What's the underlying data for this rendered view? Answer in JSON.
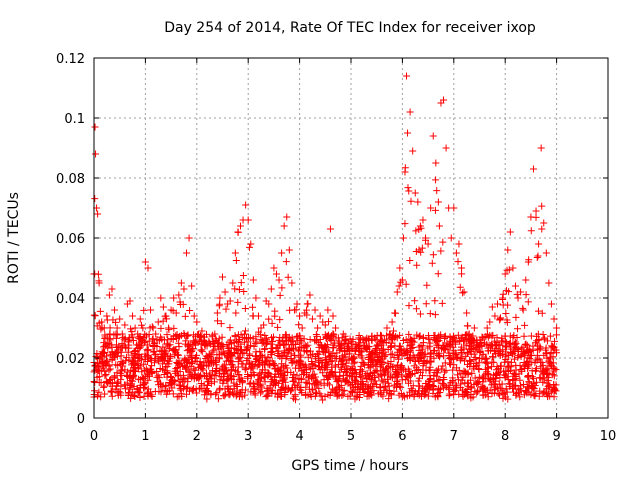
{
  "chart_data": {
    "type": "scatter",
    "title": "Day 254 of 2014, Rate Of TEC Index for receiver ixop",
    "xlabel": "GPS time / hours",
    "ylabel": "ROTI / TECUs",
    "xlim": [
      0,
      10
    ],
    "ylim": [
      0,
      0.12
    ],
    "x_ticks": [
      "0",
      "1",
      "2",
      "3",
      "4",
      "5",
      "6",
      "7",
      "8",
      "9",
      "10"
    ],
    "y_ticks": [
      "0",
      "0.02",
      "0.04",
      "0.06",
      "0.08",
      "0.1",
      "0.12"
    ],
    "grid": true,
    "marker": "+",
    "marker_color": "#ff0000",
    "series": [
      {
        "name": "ROTI",
        "x": [
          0.0,
          0.02,
          0.03,
          0.05,
          0.07,
          0.1,
          0.15,
          0.2,
          0.25,
          0.3,
          0.35,
          0.4,
          0.45,
          0.5,
          0.55,
          0.6,
          0.65,
          0.7,
          0.75,
          0.8,
          0.85,
          0.9,
          0.95,
          1.0,
          1.05,
          1.1,
          1.15,
          1.2,
          1.25,
          1.3,
          1.35,
          1.4,
          1.45,
          1.5,
          1.55,
          1.6,
          1.65,
          1.7,
          1.75,
          1.8,
          1.85,
          1.9,
          1.95,
          2.0,
          2.05,
          2.1,
          2.15,
          2.2,
          2.25,
          2.3,
          2.35,
          2.4,
          2.45,
          2.5,
          2.55,
          2.6,
          2.65,
          2.7,
          2.75,
          2.8,
          2.85,
          2.9,
          2.95,
          3.0,
          3.05,
          3.1,
          3.15,
          3.2,
          3.25,
          3.3,
          3.35,
          3.4,
          3.45,
          3.5,
          3.55,
          3.6,
          3.65,
          3.7,
          3.75,
          3.8,
          3.85,
          3.9,
          3.95,
          4.0,
          4.05,
          4.1,
          4.15,
          4.2,
          4.25,
          4.3,
          4.35,
          4.4,
          4.45,
          4.5,
          4.55,
          4.6,
          4.65,
          4.7,
          4.75,
          4.8,
          4.85,
          4.9,
          4.95,
          5.0,
          5.05,
          5.1,
          5.15,
          5.2,
          5.25,
          5.3,
          5.35,
          5.4,
          5.45,
          5.5,
          5.55,
          5.6,
          5.65,
          5.7,
          5.75,
          5.8,
          5.85,
          5.9,
          5.95,
          6.0,
          6.02,
          6.05,
          6.08,
          6.1,
          6.15,
          6.2,
          6.25,
          6.3,
          6.35,
          6.4,
          6.45,
          6.5,
          6.55,
          6.6,
          6.65,
          6.7,
          6.72,
          6.75,
          6.8,
          6.85,
          6.9,
          6.95,
          7.0,
          7.05,
          7.1,
          7.15,
          7.2,
          7.25,
          7.3,
          7.35,
          7.4,
          7.45,
          7.5,
          7.55,
          7.6,
          7.65,
          7.7,
          7.75,
          7.8,
          7.85,
          7.9,
          7.95,
          8.0,
          8.05,
          8.1,
          8.15,
          8.2,
          8.25,
          8.3,
          8.35,
          8.4,
          8.45,
          8.5,
          8.55,
          8.6,
          8.65,
          8.7,
          8.75,
          8.8,
          8.85,
          8.9,
          8.95,
          9.0
        ],
        "y": [
          0.048,
          0.097,
          0.088,
          0.07,
          0.068,
          0.045,
          0.032,
          0.03,
          0.034,
          0.041,
          0.043,
          0.036,
          0.03,
          0.033,
          0.028,
          0.031,
          0.038,
          0.039,
          0.034,
          0.03,
          0.028,
          0.033,
          0.03,
          0.052,
          0.05,
          0.036,
          0.03,
          0.028,
          0.032,
          0.04,
          0.037,
          0.034,
          0.03,
          0.036,
          0.04,
          0.035,
          0.041,
          0.045,
          0.043,
          0.055,
          0.06,
          0.044,
          0.034,
          0.032,
          0.026,
          0.029,
          0.027,
          0.024,
          0.025,
          0.022,
          0.028,
          0.035,
          0.04,
          0.047,
          0.042,
          0.038,
          0.039,
          0.045,
          0.055,
          0.062,
          0.064,
          0.066,
          0.071,
          0.066,
          0.058,
          0.046,
          0.04,
          0.034,
          0.03,
          0.031,
          0.039,
          0.038,
          0.043,
          0.05,
          0.048,
          0.046,
          0.055,
          0.064,
          0.067,
          0.056,
          0.045,
          0.036,
          0.038,
          0.034,
          0.03,
          0.035,
          0.038,
          0.041,
          0.033,
          0.036,
          0.03,
          0.034,
          0.032,
          0.031,
          0.036,
          0.063,
          0.034,
          0.03,
          0.025,
          0.024,
          0.028,
          0.026,
          0.025,
          0.023,
          0.02,
          0.024,
          0.025,
          0.022,
          0.026,
          0.024,
          0.021,
          0.026,
          0.022,
          0.024,
          0.025,
          0.023,
          0.026,
          0.03,
          0.028,
          0.032,
          0.035,
          0.042,
          0.05,
          0.046,
          0.06,
          0.082,
          0.114,
          0.095,
          0.102,
          0.089,
          0.075,
          0.072,
          0.064,
          0.066,
          0.06,
          0.058,
          0.07,
          0.094,
          0.085,
          0.072,
          0.064,
          0.105,
          0.106,
          0.09,
          0.07,
          0.06,
          0.07,
          0.055,
          0.058,
          0.05,
          0.042,
          0.035,
          0.028,
          0.025,
          0.03,
          0.026,
          0.024,
          0.027,
          0.025,
          0.03,
          0.032,
          0.037,
          0.034,
          0.038,
          0.033,
          0.04,
          0.048,
          0.056,
          0.062,
          0.05,
          0.044,
          0.04,
          0.042,
          0.036,
          0.046,
          0.052,
          0.067,
          0.083,
          0.069,
          0.058,
          0.09,
          0.065,
          0.055,
          0.045,
          0.038,
          0.033,
          0.03
        ]
      }
    ]
  }
}
